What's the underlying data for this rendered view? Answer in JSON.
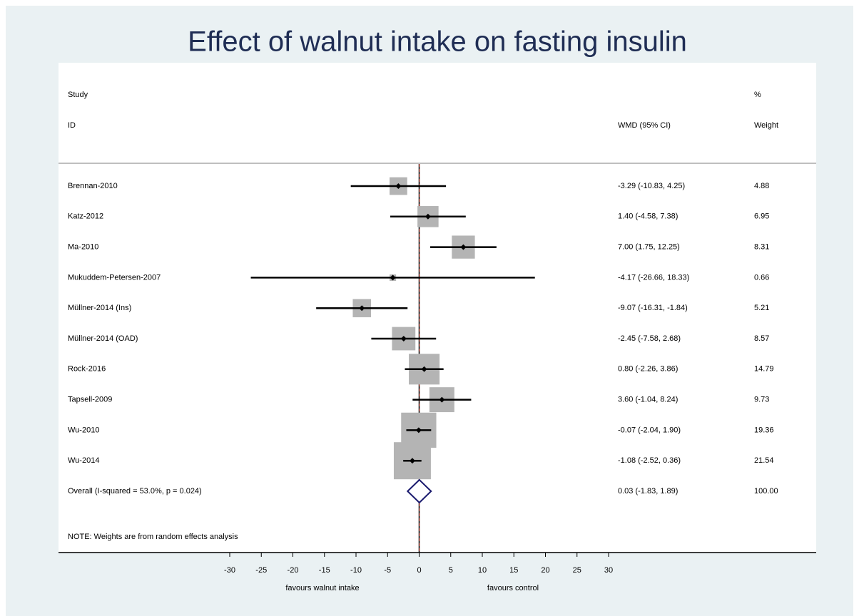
{
  "chart_data": {
    "type": "forest",
    "title": "Effect of walnut intake on fasting insulin",
    "header": {
      "study": "Study",
      "id": "ID",
      "effect": "WMD (95% CI)",
      "weight_top": "%",
      "weight": "Weight"
    },
    "categories": [
      "Brennan-2010",
      "Katz-2012",
      "Ma-2010",
      "Mukuddem-Petersen-2007",
      "Müllner-2014 (Ins)",
      "Müllner-2014 (OAD)",
      "Rock-2016",
      "Tapsell-2009",
      "Wu-2010",
      "Wu-2014"
    ],
    "values": [
      -3.29,
      1.4,
      7.0,
      -4.17,
      -9.07,
      -2.45,
      0.8,
      3.6,
      -0.07,
      -1.08
    ],
    "lower": [
      -10.83,
      -4.58,
      1.75,
      -26.66,
      -16.31,
      -7.58,
      -2.26,
      -1.04,
      -2.04,
      -2.52
    ],
    "upper": [
      4.25,
      7.38,
      12.25,
      18.33,
      -1.84,
      2.68,
      3.86,
      8.24,
      1.9,
      0.36
    ],
    "value_labels": [
      "-3.29 (-10.83, 4.25)",
      "1.40 (-4.58, 7.38)",
      "7.00 (1.75, 12.25)",
      "-4.17 (-26.66, 18.33)",
      "-9.07 (-16.31, -1.84)",
      "-2.45 (-7.58, 2.68)",
      "0.80 (-2.26, 3.86)",
      "3.60 (-1.04, 8.24)",
      "-0.07 (-2.04, 1.90)",
      "-1.08 (-2.52, 0.36)"
    ],
    "weights": [
      4.88,
      6.95,
      8.31,
      0.66,
      5.21,
      8.57,
      14.79,
      9.73,
      19.36,
      21.54
    ],
    "overall": {
      "label": "Overall  (I-squared = 53.0%, p = 0.024)",
      "value": 0.03,
      "lower": -1.83,
      "upper": 1.89,
      "value_label": "0.03 (-1.83, 1.89)",
      "weight": {
        "value": 100,
        "label": "100.00"
      }
    },
    "note": "NOTE: Weights are from random effects analysis",
    "xlim": [
      -30,
      30
    ],
    "xticks": [
      -30,
      -25,
      -20,
      -15,
      -10,
      -5,
      0,
      5,
      10,
      15,
      20,
      25,
      30
    ],
    "x_label_left": "favours walnut intake",
    "x_label_right": "favours control",
    "box_color": "#b4b4b4",
    "diamond_color": "#1a1a6e",
    "overall_line_color": "#c0392b"
  }
}
